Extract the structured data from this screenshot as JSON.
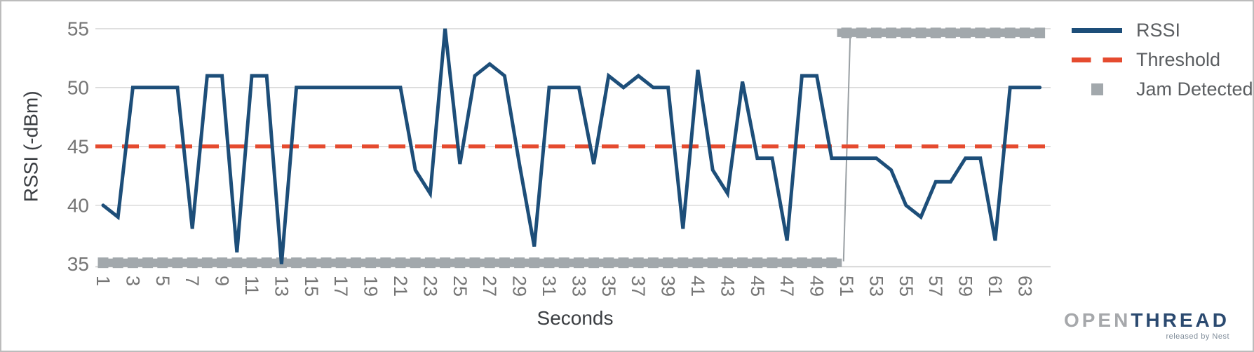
{
  "chart_data": {
    "type": "line",
    "xlabel": "Seconds",
    "ylabel": "RSSI (-dBm)",
    "xlim": [
      1,
      64
    ],
    "ylim": [
      35,
      55
    ],
    "yticks": [
      35,
      40,
      45,
      50,
      55
    ],
    "x_tick_labels": [
      1,
      3,
      5,
      7,
      9,
      11,
      13,
      15,
      17,
      19,
      21,
      23,
      25,
      27,
      29,
      31,
      33,
      35,
      37,
      39,
      41,
      43,
      45,
      47,
      49,
      51,
      53,
      55,
      57,
      59,
      61,
      63
    ],
    "grid": true,
    "legend_position": "top-right",
    "x": "seconds 1 through 64, one sample per second",
    "series": [
      {
        "name": "RSSI",
        "style": "solid-line",
        "color": "#1d4e79",
        "values": [
          40,
          39,
          50,
          50,
          50,
          50,
          38,
          51,
          51,
          36,
          51,
          51,
          35,
          50,
          50,
          50,
          50,
          50,
          50,
          50,
          50,
          43,
          41,
          55,
          43.5,
          51,
          52,
          51,
          43.5,
          36.5,
          50,
          50,
          50,
          43.5,
          51,
          50,
          51,
          50,
          50,
          38,
          51.5,
          43,
          41,
          50.5,
          44,
          44,
          37,
          51,
          51,
          44,
          44,
          44,
          44,
          43,
          40,
          39,
          42,
          42,
          44,
          44,
          37,
          50,
          50,
          50
        ]
      },
      {
        "name": "Threshold",
        "style": "dashed-line",
        "color": "#e54b2f",
        "value": 45
      },
      {
        "name": "Jam Detected",
        "style": "square-marker-step",
        "color": "#a2a8ac",
        "low_value": 35,
        "high_value": 55,
        "step_at_second": 51
      }
    ]
  },
  "axis": {
    "tick_color": "#757575",
    "grid_color": "#d9d9d9",
    "axis_line_color": "#c9c9c9",
    "title_color": "#3b3e42"
  },
  "branding": {
    "logo_open": "OPEN",
    "logo_thread": "THREAD",
    "logo_sub": "released by Nest"
  }
}
